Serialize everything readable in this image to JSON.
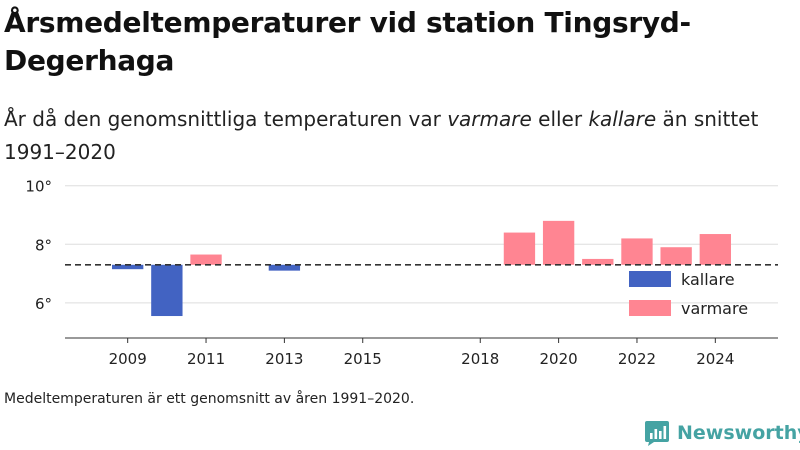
{
  "title": "Årsmedeltemperaturer vid station Tingsryd-Degerhaga",
  "subtitle": {
    "part1": "År då den genomsnittliga temperaturen var ",
    "em1": "varmare",
    "part2": " eller ",
    "em2": "kallare",
    "part3": " än snittet 1991–2020"
  },
  "footnote": "Medeltemperaturen är ett genomsnitt av åren 1991–2020.",
  "brand": {
    "name": "Newsworthy",
    "icon": "newsworthy-logo-icon"
  },
  "colors": {
    "kallare": "#4263c2",
    "varmare": "#ff8592",
    "baseline": "#333333",
    "grid": "#dddddd"
  },
  "chart_data": {
    "type": "bar",
    "baseline": 7.3,
    "ylim": [
      4.8,
      10.4
    ],
    "yticks": [
      6,
      8,
      10
    ],
    "ytick_labels": [
      "6°",
      "8°",
      "10°"
    ],
    "xlim": [
      2007.4,
      2025.6
    ],
    "xticks": [
      2009,
      2011,
      2013,
      2015,
      2018,
      2020,
      2022,
      2024
    ],
    "xtick_labels": [
      "2009",
      "2011",
      "2013",
      "2015",
      "2018",
      "2020",
      "2022",
      "2024"
    ],
    "legend": {
      "position": "bottom-right",
      "entries": [
        {
          "key": "kallare",
          "label": "kallare"
        },
        {
          "key": "varmare",
          "label": "varmare"
        }
      ]
    },
    "bars": [
      {
        "year": 2009,
        "value": 7.15,
        "category": "kallare"
      },
      {
        "year": 2010,
        "value": 5.55,
        "category": "kallare"
      },
      {
        "year": 2011,
        "value": 7.65,
        "category": "varmare"
      },
      {
        "year": 2013,
        "value": 7.1,
        "category": "kallare"
      },
      {
        "year": 2019,
        "value": 8.4,
        "category": "varmare"
      },
      {
        "year": 2020,
        "value": 8.8,
        "category": "varmare"
      },
      {
        "year": 2021,
        "value": 7.5,
        "category": "varmare"
      },
      {
        "year": 2022,
        "value": 8.2,
        "category": "varmare"
      },
      {
        "year": 2023,
        "value": 7.9,
        "category": "varmare"
      },
      {
        "year": 2024,
        "value": 8.35,
        "category": "varmare"
      }
    ]
  }
}
